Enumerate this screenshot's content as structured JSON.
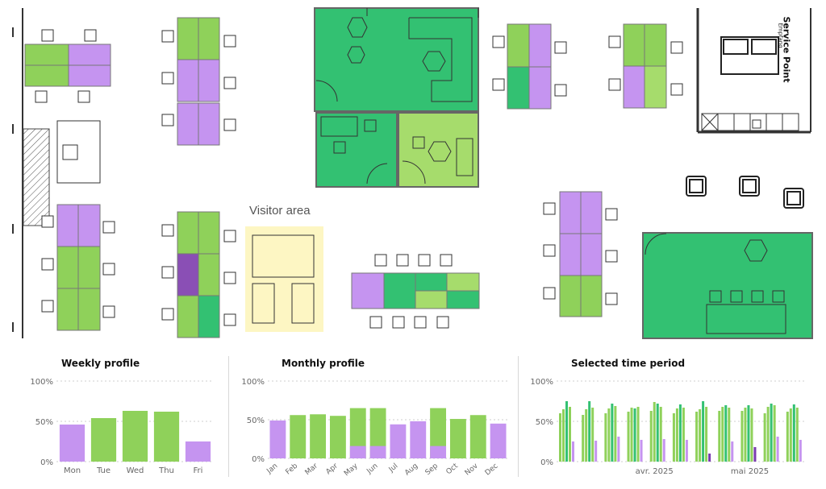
{
  "floorplan": {
    "visitor_area_label": "Visitor area",
    "service_point_label": "Service Point",
    "service_point_sublabel": "Empfang",
    "colors": {
      "high": "#33c172",
      "medium": "#8fd15a",
      "light": "#a6dc6c",
      "low": "#c594f0",
      "critical": "#8a4fb5",
      "visitor": "#fdf6c3"
    }
  },
  "panels": {
    "weekly_title": "Weekly profile",
    "monthly_title": "Monthly profile",
    "period_title": "Selected time period"
  },
  "chart_data": [
    {
      "type": "bar",
      "title": "Weekly profile",
      "categories": [
        "Mon",
        "Tue",
        "Wed",
        "Thu",
        "Fri"
      ],
      "values": [
        46,
        54,
        63,
        62,
        25
      ],
      "bar_colors": [
        "#c594f0",
        "#8fd15a",
        "#8fd15a",
        "#8fd15a",
        "#c594f0"
      ],
      "yticks": [
        "0%",
        "50%",
        "100%"
      ],
      "ylim": [
        0,
        100
      ],
      "grid": true
    },
    {
      "type": "bar",
      "title": "Monthly profile",
      "categories": [
        "Jan",
        "Feb",
        "Mar",
        "Apr",
        "May",
        "Jun",
        "Jul",
        "Aug",
        "Sep",
        "Oct",
        "Nov",
        "Dec"
      ],
      "values": [
        49,
        56,
        57,
        55,
        65,
        65,
        44,
        48,
        65,
        51,
        56,
        45
      ],
      "stacked_low": [
        0,
        0,
        0,
        0,
        16,
        16,
        0,
        0,
        16,
        0,
        0,
        0
      ],
      "bar_colors": [
        "#c594f0",
        "#8fd15a",
        "#8fd15a",
        "#8fd15a",
        "#8fd15a",
        "#8fd15a",
        "#c594f0",
        "#c594f0",
        "#8fd15a",
        "#8fd15a",
        "#8fd15a",
        "#c594f0"
      ],
      "yticks": [
        "0%",
        "50%",
        "100%"
      ],
      "ylim": [
        0,
        100
      ],
      "grid": true
    },
    {
      "type": "bar",
      "title": "Selected time period",
      "xticks": [
        "avr. 2025",
        "mai 2025"
      ],
      "yticks": [
        "0%",
        "50%",
        "100%"
      ],
      "ylim": [
        0,
        100
      ],
      "grid": true,
      "weeks": [
        [
          60,
          65,
          75,
          68,
          25
        ],
        [
          58,
          65,
          75,
          67,
          26
        ],
        [
          60,
          66,
          72,
          69,
          31
        ],
        [
          62,
          67,
          66,
          68,
          27
        ],
        [
          63,
          74,
          72,
          68,
          28
        ],
        [
          60,
          66,
          71,
          67,
          27
        ],
        [
          62,
          65,
          75,
          68,
          10
        ],
        [
          63,
          68,
          70,
          67,
          25
        ],
        [
          63,
          67,
          70,
          66,
          18
        ],
        [
          60,
          68,
          72,
          70,
          31
        ],
        [
          62,
          66,
          71,
          67,
          27
        ]
      ]
    }
  ]
}
